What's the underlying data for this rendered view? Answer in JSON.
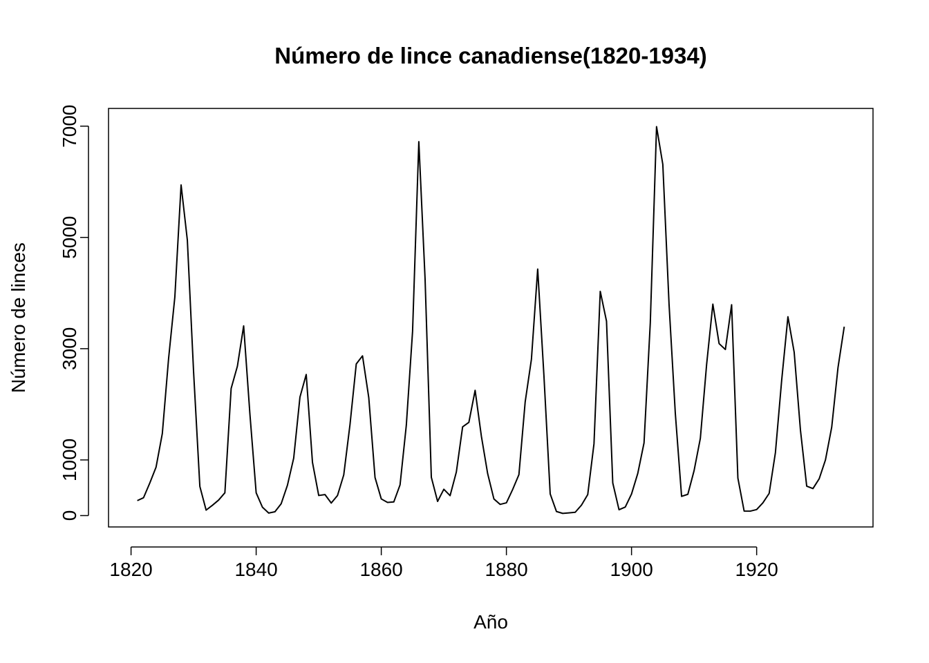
{
  "chart_data": {
    "type": "line",
    "title": "Número de lince canadiense(1820-1934)",
    "xlabel": "Año",
    "ylabel": "Número de linces",
    "xlim": [
      1816.4,
      1938.6
    ],
    "ylim": [
      -204.56,
      7318.56
    ],
    "x_ticks": [
      1820,
      1840,
      1860,
      1880,
      1900,
      1920
    ],
    "y_ticks": [
      0,
      1000,
      3000,
      5000,
      7000
    ],
    "grid": false,
    "legend": "none",
    "line_color": "#000000",
    "series": [
      {
        "x": [
          1821,
          1822,
          1823,
          1824,
          1825,
          1826,
          1827,
          1828,
          1829,
          1830,
          1831,
          1832,
          1833,
          1834,
          1835,
          1836,
          1837,
          1838,
          1839,
          1840,
          1841,
          1842,
          1843,
          1844,
          1845,
          1846,
          1847,
          1848,
          1849,
          1850,
          1851,
          1852,
          1853,
          1854,
          1855,
          1856,
          1857,
          1858,
          1859,
          1860,
          1861,
          1862,
          1863,
          1864,
          1865,
          1866,
          1867,
          1868,
          1869,
          1870,
          1871,
          1872,
          1873,
          1874,
          1875,
          1876,
          1877,
          1878,
          1879,
          1880,
          1881,
          1882,
          1883,
          1884,
          1885,
          1886,
          1887,
          1888,
          1889,
          1890,
          1891,
          1892,
          1893,
          1894,
          1895,
          1896,
          1897,
          1898,
          1899,
          1900,
          1901,
          1902,
          1903,
          1904,
          1905,
          1906,
          1907,
          1908,
          1909,
          1910,
          1911,
          1912,
          1913,
          1914,
          1915,
          1916,
          1917,
          1918,
          1919,
          1920,
          1921,
          1922,
          1923,
          1924,
          1925,
          1926,
          1927,
          1928,
          1929,
          1930,
          1931,
          1932,
          1933,
          1934
        ],
        "values": [
          269,
          321,
          585,
          871,
          1475,
          2821,
          3928,
          5943,
          4950,
          2577,
          523,
          98,
          184,
          279,
          409,
          2285,
          2685,
          3409,
          1824,
          409,
          151,
          45,
          68,
          213,
          546,
          1033,
          2129,
          2536,
          957,
          361,
          377,
          225,
          360,
          731,
          1638,
          2725,
          2871,
          2119,
          684,
          299,
          236,
          245,
          552,
          1623,
          3311,
          6721,
          4254,
          687,
          255,
          473,
          358,
          784,
          1594,
          1676,
          2251,
          1426,
          756,
          299,
          201,
          229,
          469,
          736,
          2042,
          2811,
          4431,
          2511,
          389,
          73,
          39,
          49,
          59,
          188,
          377,
          1292,
          4031,
          3495,
          587,
          105,
          153,
          387,
          758,
          1307,
          3465,
          6991,
          6313,
          3794,
          1836,
          345,
          382,
          808,
          1388,
          2713,
          3800,
          3091,
          2985,
          3790,
          674,
          81,
          80,
          108,
          229,
          399,
          1132,
          2432,
          3574,
          2935,
          1537,
          529,
          485,
          662,
          1000,
          1590,
          2657,
          3396
        ]
      }
    ]
  }
}
